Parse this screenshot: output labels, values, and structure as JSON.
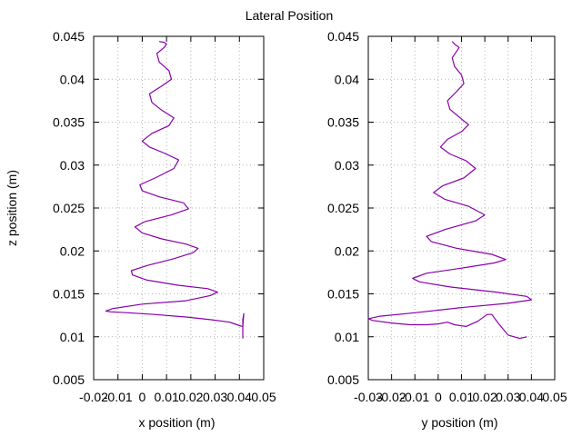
{
  "figure_title": "Lateral Position",
  "colors": {
    "series": "#8800aa",
    "grid": "#b4b4b4",
    "frame": "#000000"
  },
  "chart_data": [
    {
      "type": "line",
      "xlabel": "x position (m)",
      "ylabel": "z position (m)",
      "xlim": [
        -0.02,
        0.05
      ],
      "ylim": [
        0.005,
        0.045
      ],
      "grid": true,
      "x_ticks": [
        "-0.02",
        "-0.01",
        "0",
        "0.01",
        "0.02",
        "0.03",
        "0.04",
        "0.05"
      ],
      "y_ticks": [
        "0.005",
        "0.01",
        "0.015",
        "0.02",
        "0.025",
        "0.03",
        "0.035",
        "0.04",
        "0.045"
      ],
      "x_tick_values": [
        -0.02,
        -0.01,
        0,
        0.01,
        0.02,
        0.03,
        0.04,
        0.05
      ],
      "y_tick_values": [
        0.005,
        0.01,
        0.015,
        0.02,
        0.025,
        0.03,
        0.035,
        0.04,
        0.045
      ],
      "series": [
        {
          "points": [
            [
              0.0414,
              0.0098
            ],
            [
              0.0414,
              0.012
            ],
            [
              0.0418,
              0.0127
            ],
            [
              0.0414,
              0.0112
            ],
            [
              0.04,
              0.0113
            ],
            [
              0.036,
              0.0117
            ],
            [
              0.028,
              0.012
            ],
            [
              0.018,
              0.0123
            ],
            [
              0.005,
              0.0126
            ],
            [
              -0.006,
              0.0128
            ],
            [
              -0.013,
              0.0129
            ],
            [
              -0.015,
              0.013
            ],
            [
              -0.012,
              0.0133
            ],
            [
              0.0,
              0.0138
            ],
            [
              0.018,
              0.0142
            ],
            [
              0.028,
              0.0148
            ],
            [
              0.031,
              0.0152
            ],
            [
              0.027,
              0.0156
            ],
            [
              0.015,
              0.016
            ],
            [
              0.002,
              0.0166
            ],
            [
              -0.004,
              0.0172
            ],
            [
              -0.0045,
              0.0177
            ],
            [
              0.002,
              0.0183
            ],
            [
              0.013,
              0.0191
            ],
            [
              0.021,
              0.0198
            ],
            [
              0.023,
              0.0203
            ],
            [
              0.018,
              0.0208
            ],
            [
              0.008,
              0.0214
            ],
            [
              0.0,
              0.0221
            ],
            [
              -0.003,
              0.0228
            ],
            [
              0.001,
              0.0234
            ],
            [
              0.012,
              0.0242
            ],
            [
              0.019,
              0.0249
            ],
            [
              0.017,
              0.0256
            ],
            [
              0.007,
              0.0263
            ],
            [
              0.0,
              0.027
            ],
            [
              -0.001,
              0.0277
            ],
            [
              0.006,
              0.0286
            ],
            [
              0.013,
              0.0296
            ],
            [
              0.015,
              0.0306
            ],
            [
              0.009,
              0.0314
            ],
            [
              0.003,
              0.0321
            ],
            [
              0.0,
              0.0328
            ],
            [
              0.004,
              0.0337
            ],
            [
              0.011,
              0.0346
            ],
            [
              0.013,
              0.0355
            ],
            [
              0.008,
              0.0364
            ],
            [
              0.004,
              0.0373
            ],
            [
              0.003,
              0.0383
            ],
            [
              0.008,
              0.0392
            ],
            [
              0.012,
              0.04
            ],
            [
              0.011,
              0.041
            ],
            [
              0.007,
              0.042
            ],
            [
              0.006,
              0.043
            ],
            [
              0.009,
              0.0437
            ],
            [
              0.01,
              0.0441
            ],
            [
              0.009,
              0.0443
            ],
            [
              0.007,
              0.0444
            ]
          ]
        }
      ]
    },
    {
      "type": "line",
      "xlabel": "y position (m)",
      "ylabel": "",
      "xlim": [
        -0.03,
        0.05
      ],
      "ylim": [
        0.005,
        0.045
      ],
      "grid": true,
      "x_ticks": [
        "-0.03",
        "-0.02",
        "-0.01",
        "0",
        "0.01",
        "0.02",
        "0.03",
        "0.04",
        "0.05"
      ],
      "y_ticks": [
        "0.005",
        "0.01",
        "0.015",
        "0.02",
        "0.025",
        "0.03",
        "0.035",
        "0.04",
        "0.045"
      ],
      "x_tick_values": [
        -0.03,
        -0.02,
        -0.01,
        0,
        0.01,
        0.02,
        0.03,
        0.04,
        0.05
      ],
      "y_tick_values": [
        0.005,
        0.01,
        0.015,
        0.02,
        0.025,
        0.03,
        0.035,
        0.04,
        0.045
      ],
      "series": [
        {
          "points": [
            [
              0.038,
              0.01
            ],
            [
              0.035,
              0.0098
            ],
            [
              0.03,
              0.0102
            ],
            [
              0.026,
              0.0115
            ],
            [
              0.023,
              0.0126
            ],
            [
              0.021,
              0.0126
            ],
            [
              0.017,
              0.0118
            ],
            [
              0.012,
              0.0112
            ],
            [
              0.007,
              0.0114
            ],
            [
              0.004,
              0.0117
            ],
            [
              0.0,
              0.0115
            ],
            [
              -0.005,
              0.0114
            ],
            [
              -0.012,
              0.0114
            ],
            [
              -0.02,
              0.0116
            ],
            [
              -0.028,
              0.0119
            ],
            [
              -0.03,
              0.0121
            ],
            [
              -0.025,
              0.0124
            ],
            [
              -0.01,
              0.0128
            ],
            [
              0.01,
              0.0134
            ],
            [
              0.03,
              0.0139
            ],
            [
              0.04,
              0.0143
            ],
            [
              0.038,
              0.0147
            ],
            [
              0.025,
              0.0152
            ],
            [
              0.005,
              0.0158
            ],
            [
              -0.008,
              0.0164
            ],
            [
              -0.011,
              0.0168
            ],
            [
              -0.005,
              0.0174
            ],
            [
              0.01,
              0.018
            ],
            [
              0.024,
              0.0186
            ],
            [
              0.029,
              0.019
            ],
            [
              0.023,
              0.0196
            ],
            [
              0.008,
              0.0203
            ],
            [
              -0.003,
              0.0211
            ],
            [
              -0.005,
              0.0217
            ],
            [
              0.003,
              0.0225
            ],
            [
              0.016,
              0.0235
            ],
            [
              0.02,
              0.0242
            ],
            [
              0.013,
              0.0252
            ],
            [
              0.003,
              0.026
            ],
            [
              -0.002,
              0.0268
            ],
            [
              0.002,
              0.0276
            ],
            [
              0.011,
              0.0285
            ],
            [
              0.016,
              0.0296
            ],
            [
              0.012,
              0.0305
            ],
            [
              0.005,
              0.0313
            ],
            [
              0.001,
              0.0321
            ],
            [
              0.004,
              0.033
            ],
            [
              0.01,
              0.0339
            ],
            [
              0.013,
              0.0347
            ],
            [
              0.009,
              0.0356
            ],
            [
              0.005,
              0.0365
            ],
            [
              0.004,
              0.0375
            ],
            [
              0.008,
              0.0386
            ],
            [
              0.011,
              0.0395
            ],
            [
              0.01,
              0.0405
            ],
            [
              0.007,
              0.0415
            ],
            [
              0.006,
              0.0425
            ],
            [
              0.008,
              0.0433
            ],
            [
              0.009,
              0.0437
            ],
            [
              0.007,
              0.0441
            ],
            [
              0.006,
              0.0444
            ]
          ]
        }
      ]
    }
  ]
}
